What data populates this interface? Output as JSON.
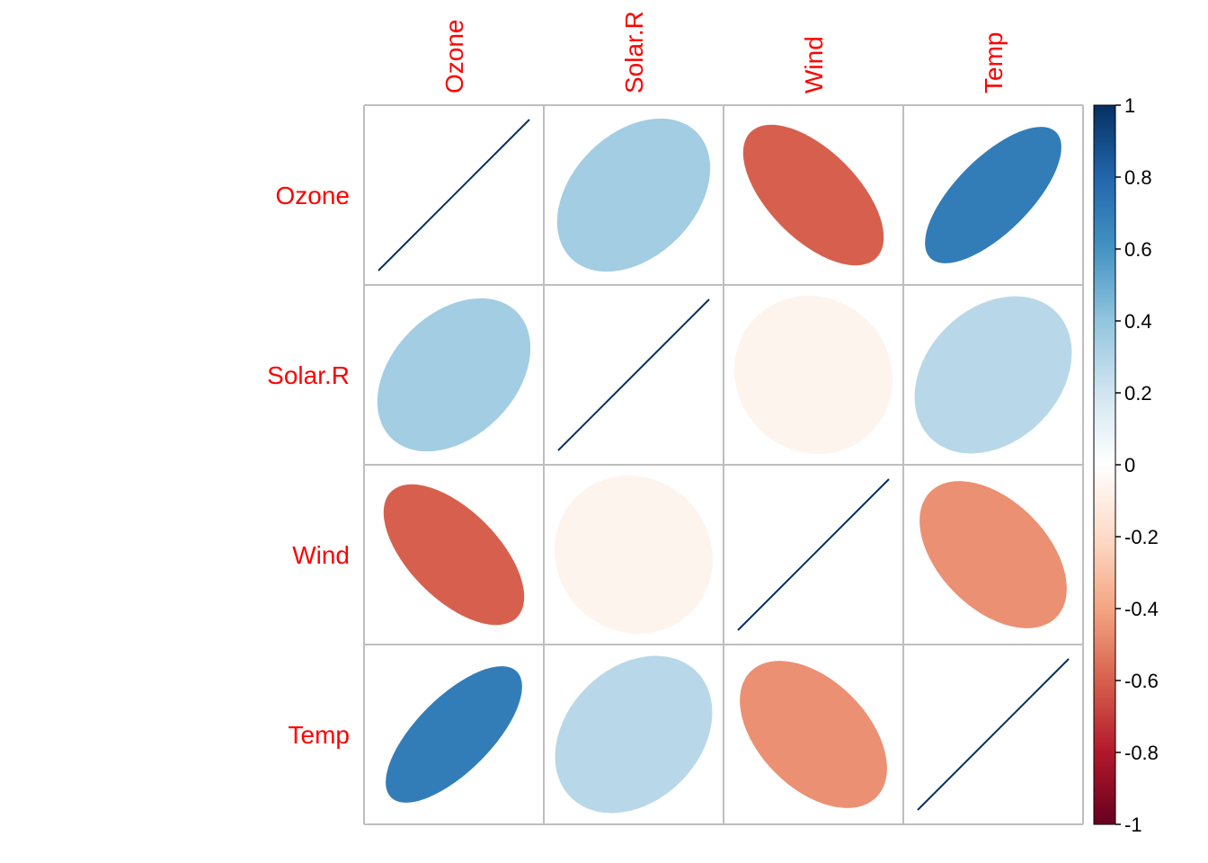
{
  "chart_data": {
    "type": "heatmap",
    "method": "ellipse",
    "variables": [
      "Ozone",
      "Solar.R",
      "Wind",
      "Temp"
    ],
    "matrix": [
      [
        1.0,
        0.35,
        -0.6,
        0.7
      ],
      [
        0.35,
        1.0,
        -0.06,
        0.28
      ],
      [
        -0.6,
        -0.06,
        1.0,
        -0.46
      ],
      [
        0.7,
        0.28,
        -0.46,
        1.0
      ]
    ],
    "colorbar": {
      "range": [
        -1,
        1
      ],
      "ticks": [
        "1",
        "0.8",
        "0.6",
        "0.4",
        "0.2",
        "0",
        "-0.2",
        "-0.4",
        "-0.6",
        "-0.8",
        "-1"
      ]
    },
    "label_color": "#ff0000",
    "grid": true,
    "legend_position": "right"
  }
}
